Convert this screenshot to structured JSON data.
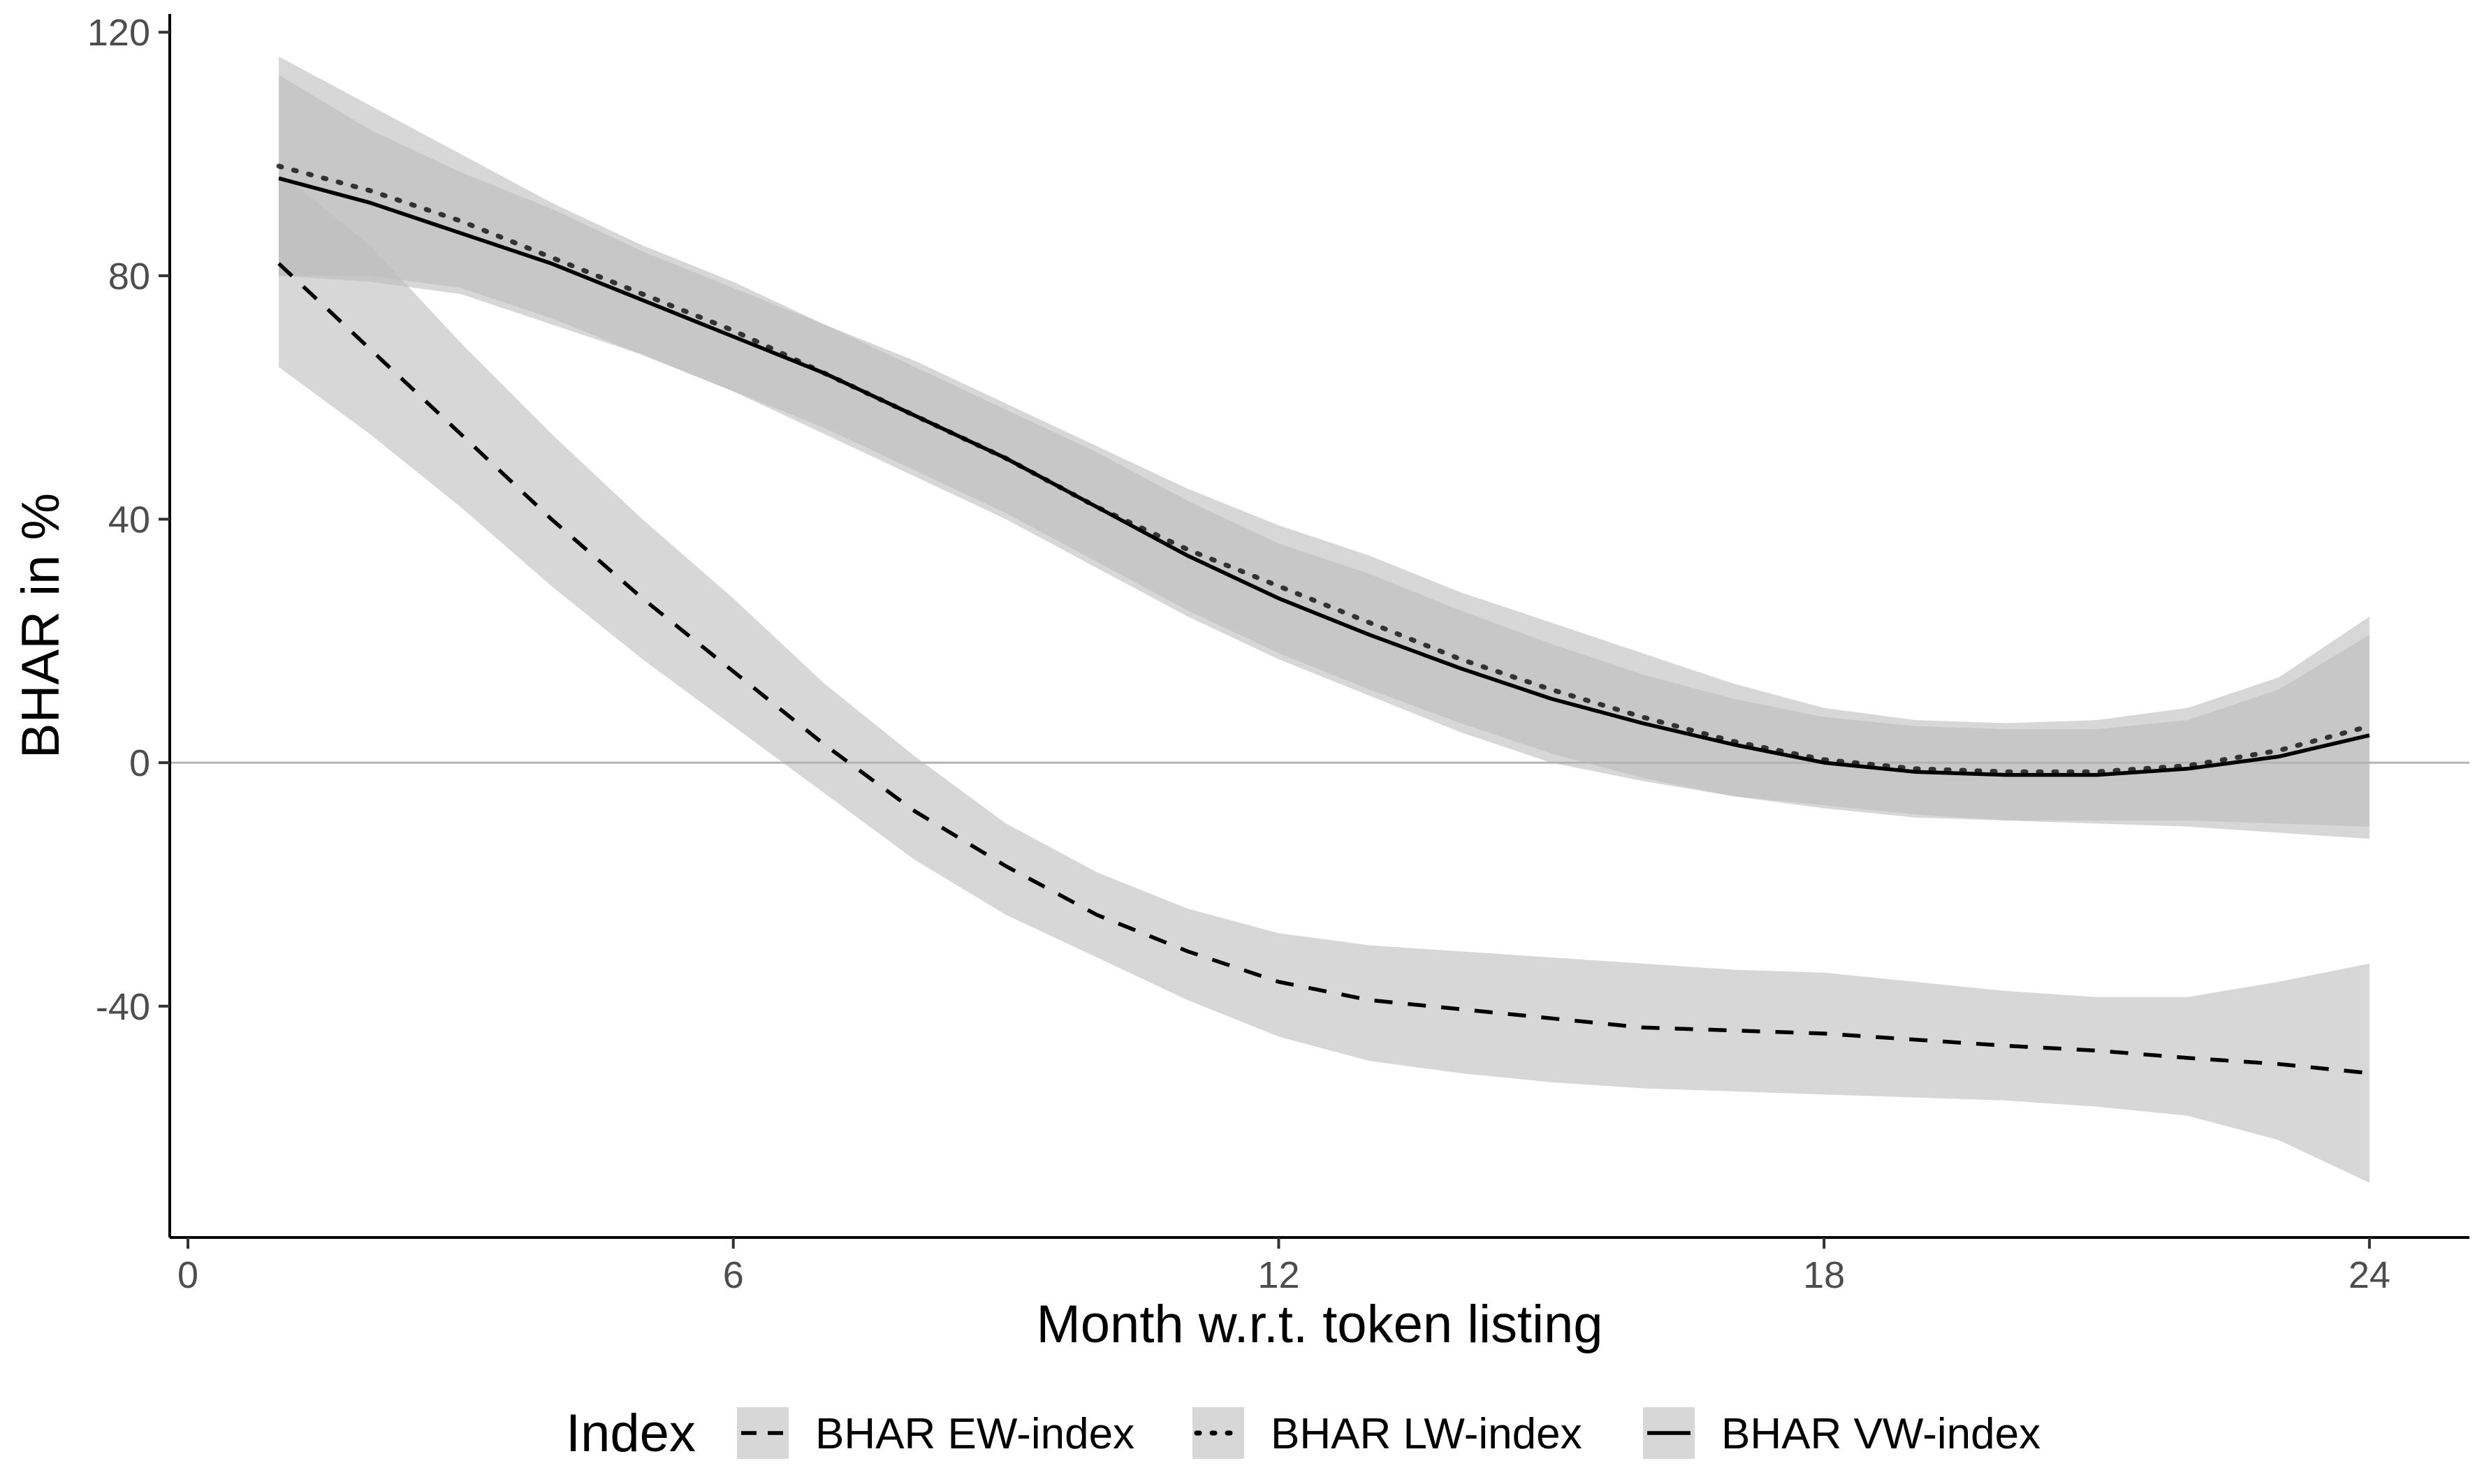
{
  "chart_data": {
    "type": "line",
    "title": "",
    "xlabel": "Month w.r.t. token listing",
    "ylabel": "BHAR in %",
    "xlim": [
      -0.2,
      25.1
    ],
    "ylim": [
      -78,
      123
    ],
    "x_ticks": [
      0,
      6,
      12,
      18,
      24
    ],
    "x_tick_labels": [
      "0",
      "6",
      "12",
      "18",
      "24"
    ],
    "y_ticks": [
      -40,
      0,
      40,
      80,
      120
    ],
    "y_tick_labels": [
      "-40",
      "0",
      "40",
      "80",
      "120"
    ],
    "reference_line_y": 0,
    "grid": false,
    "legend": {
      "title": "Index",
      "placement": "bottom",
      "entries": [
        "BHAR EW-index",
        "BHAR LW-index",
        "BHAR VW-index"
      ]
    },
    "colors": {
      "line": "#000000",
      "ribbon": "#bdbdbd",
      "reference": "#b3b3b3",
      "axis": "#000000"
    },
    "series": [
      {
        "name": "BHAR EW-index",
        "linestyle": "dashed",
        "x": [
          1,
          2,
          3,
          4,
          5,
          6,
          7,
          8,
          9,
          10,
          11,
          12,
          13,
          14,
          15,
          16,
          17,
          18,
          19,
          20,
          21,
          22,
          23,
          24
        ],
        "values": [
          82,
          68,
          54,
          40,
          27,
          15,
          3,
          -8,
          -17,
          -25,
          -31,
          -36,
          -39,
          -40.5,
          -42,
          -43.5,
          -44,
          -44.5,
          -45.5,
          -46.5,
          -47.3,
          -48.5,
          -49.5,
          -51
        ],
        "lower": [
          65,
          54,
          42,
          29,
          17,
          6,
          -5,
          -16,
          -25,
          -32,
          -39,
          -45,
          -49,
          -51,
          -52.5,
          -53.5,
          -54,
          -54.5,
          -55,
          -55.5,
          -56.5,
          -58,
          -62,
          -69
        ],
        "upper": [
          97,
          85,
          69,
          54,
          40,
          27,
          13,
          1,
          -10,
          -18,
          -24,
          -28,
          -30,
          -31,
          -32,
          -33,
          -34,
          -34.5,
          -36,
          -37.5,
          -38.5,
          -38.5,
          -36,
          -33
        ]
      },
      {
        "name": "BHAR LW-index",
        "linestyle": "dotted",
        "x": [
          1,
          2,
          3,
          4,
          5,
          6,
          7,
          8,
          9,
          10,
          11,
          12,
          13,
          14,
          15,
          16,
          17,
          18,
          19,
          20,
          21,
          22,
          23,
          24
        ],
        "values": [
          98,
          94,
          89,
          83,
          77,
          71,
          64,
          57,
          50,
          42,
          35,
          29,
          23,
          17,
          12,
          7.5,
          3.5,
          0.5,
          -1,
          -1.5,
          -1.5,
          -0.5,
          2,
          6
        ],
        "lower": [
          80,
          80,
          78,
          73,
          67,
          61,
          54,
          47,
          40,
          32,
          24,
          17,
          11,
          5,
          0,
          -3,
          -5.5,
          -7,
          -8.5,
          -9.5,
          -10,
          -10.5,
          -11.5,
          -12.5
        ],
        "upper": [
          116,
          108,
          100,
          92,
          85,
          79,
          72,
          66,
          59,
          52,
          45,
          39,
          34,
          28,
          23,
          18,
          13,
          9,
          7,
          6.5,
          7,
          9,
          14,
          24
        ]
      },
      {
        "name": "BHAR VW-index",
        "linestyle": "solid",
        "x": [
          1,
          2,
          3,
          4,
          5,
          6,
          7,
          8,
          9,
          10,
          11,
          12,
          13,
          14,
          15,
          16,
          17,
          18,
          19,
          20,
          21,
          22,
          23,
          24
        ],
        "values": [
          96,
          92,
          87,
          82,
          76,
          70,
          64,
          57,
          50,
          42,
          34,
          27,
          21,
          15.5,
          10.5,
          6.5,
          3,
          0,
          -1.5,
          -2,
          -2,
          -1,
          1,
          4.5
        ],
        "lower": [
          80,
          79,
          77,
          72,
          67,
          61,
          55,
          48,
          41,
          33,
          25,
          18,
          12,
          6.5,
          1.5,
          -2.5,
          -5.5,
          -7.5,
          -9,
          -9.5,
          -9.5,
          -9.5,
          -10,
          -10.5
        ],
        "upper": [
          113,
          104,
          97,
          91,
          84,
          78,
          72,
          65,
          58,
          51,
          43,
          36,
          31,
          25,
          19.5,
          14.5,
          10.5,
          7.5,
          6,
          5.5,
          5.5,
          7,
          12,
          21
        ]
      }
    ]
  }
}
